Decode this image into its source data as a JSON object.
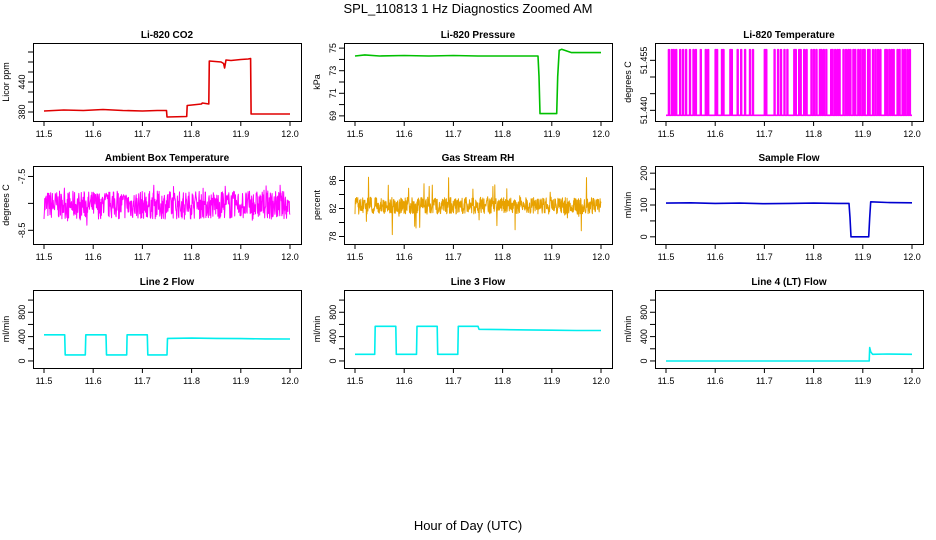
{
  "figure": {
    "title": "SPL_110813  1 Hz Diagnostics Zoomed AM",
    "x_axis_title": "Hour of Day (UTC)"
  },
  "chart_data": [
    {
      "type": "line",
      "title": "Li-820 CO2",
      "ylabel": "Licor ppm",
      "color": "#e00000",
      "xlim": [
        11.5,
        12.0
      ],
      "ylim": [
        370,
        510
      ],
      "xticks": [
        "11.5",
        "11.6",
        "11.7",
        "11.8",
        "11.9",
        "12.0"
      ],
      "yticks": [
        {
          "v": 380,
          "label": "380"
        },
        {
          "v": 400,
          "label": ""
        },
        {
          "v": 420,
          "label": ""
        },
        {
          "v": 440,
          "label": "440"
        },
        {
          "v": 460,
          "label": ""
        },
        {
          "v": 480,
          "label": ""
        },
        {
          "v": 500,
          "label": ""
        }
      ],
      "x": [
        11.5,
        11.54,
        11.58,
        11.62,
        11.66,
        11.7,
        11.73,
        11.749,
        11.75,
        11.79,
        11.791,
        11.82,
        11.822,
        11.835,
        11.836,
        11.86,
        11.865,
        11.867,
        11.87,
        11.88,
        11.9,
        11.915,
        11.92,
        11.921,
        11.96,
        12.0
      ],
      "y": [
        382,
        384,
        383,
        385,
        383,
        382,
        383,
        383,
        370,
        371,
        393,
        396,
        398,
        396,
        482,
        480,
        477,
        468,
        484,
        483,
        485,
        486,
        487,
        376,
        376,
        376
      ]
    },
    {
      "type": "line",
      "title": "Li-820 Pressure",
      "ylabel": "kPa",
      "color": "#00c000",
      "xlim": [
        11.5,
        12.0
      ],
      "ylim": [
        68.9,
        75.1
      ],
      "xticks": [
        "11.5",
        "11.6",
        "11.7",
        "11.8",
        "11.9",
        "12.0"
      ],
      "yticks": [
        {
          "v": 69,
          "label": "69"
        },
        {
          "v": 70,
          "label": ""
        },
        {
          "v": 71,
          "label": "71"
        },
        {
          "v": 72,
          "label": ""
        },
        {
          "v": 73,
          "label": "73"
        },
        {
          "v": 74,
          "label": ""
        },
        {
          "v": 75,
          "label": "75"
        }
      ],
      "x": [
        11.5,
        11.52,
        11.55,
        11.6,
        11.65,
        11.7,
        11.75,
        11.8,
        11.85,
        11.872,
        11.874,
        11.876,
        11.91,
        11.912,
        11.915,
        11.92,
        11.94,
        12.0
      ],
      "y": [
        74.3,
        74.4,
        74.3,
        74.35,
        74.3,
        74.35,
        74.3,
        74.3,
        74.3,
        74.3,
        72.5,
        69.2,
        69.2,
        72.5,
        74.8,
        74.9,
        74.6,
        74.6
      ]
    },
    {
      "type": "line",
      "title": "Li-820 Temperature",
      "ylabel": "degrees C",
      "color": "#ff00ff",
      "xlim": [
        11.5,
        12.0
      ],
      "ylim": [
        51.438,
        51.459
      ],
      "xticks": [
        "11.5",
        "11.6",
        "11.7",
        "11.8",
        "11.9",
        "12.0"
      ],
      "yticks": [
        {
          "v": 51.44,
          "label": "51.440"
        },
        {
          "v": 51.445,
          "label": ""
        },
        {
          "v": 51.45,
          "label": ""
        },
        {
          "v": 51.455,
          "label": "51.455"
        }
      ],
      "low": 51.4385,
      "high": 51.4582,
      "toggle_x": [
        11.505,
        11.511,
        11.515,
        11.52,
        11.528,
        11.534,
        11.54,
        11.548,
        11.555,
        11.56,
        11.57,
        11.58,
        11.585,
        11.6,
        11.603,
        11.613,
        11.616,
        11.63,
        11.633,
        11.645,
        11.652,
        11.66,
        11.67,
        11.676,
        11.7,
        11.703,
        11.72,
        11.727,
        11.733,
        11.74,
        11.746,
        11.76,
        11.763,
        11.77,
        11.773,
        11.78,
        11.785,
        11.795,
        11.8,
        11.805,
        11.812,
        11.815,
        11.82,
        11.825,
        11.835,
        11.838,
        11.843,
        11.848,
        11.852,
        11.86,
        11.865,
        11.87,
        11.874,
        11.88,
        11.884,
        11.89,
        11.895,
        11.9,
        11.903,
        11.91,
        11.913,
        11.92,
        11.925,
        11.93,
        11.935,
        11.945,
        11.948,
        11.953,
        11.958,
        11.962,
        11.97,
        11.974,
        11.98,
        11.985,
        11.99,
        11.995
      ]
    },
    {
      "type": "line",
      "title": "Ambient Box Temperature",
      "ylabel": "degrees C",
      "color": "#ff00ff",
      "xlim": [
        11.5,
        12.0
      ],
      "ylim": [
        -8.68,
        -7.38
      ],
      "xticks": [
        "11.5",
        "11.6",
        "11.7",
        "11.8",
        "11.9",
        "12.0"
      ],
      "yticks": [
        {
          "v": -8.5,
          "label": "-8.5"
        },
        {
          "v": -8.0,
          "label": ""
        },
        {
          "v": -7.5,
          "label": "-7.5"
        }
      ],
      "noise": {
        "center": -8.03,
        "amplitude": 0.26,
        "spike": 0.38,
        "n": 700,
        "seed": 7
      }
    },
    {
      "type": "line",
      "title": "Gas Stream RH",
      "ylabel": "percent",
      "color": "#e8a200",
      "xlim": [
        11.5,
        12.0
      ],
      "ylim": [
        77.5,
        87.5
      ],
      "xticks": [
        "11.5",
        "11.6",
        "11.7",
        "11.8",
        "11.9",
        "12.0"
      ],
      "yticks": [
        {
          "v": 78,
          "label": "78"
        },
        {
          "v": 80,
          "label": ""
        },
        {
          "v": 82,
          "label": "82"
        },
        {
          "v": 84,
          "label": ""
        },
        {
          "v": 86,
          "label": "86"
        }
      ],
      "noise": {
        "center": 82.4,
        "amplitude": 1.2,
        "spike": 4.2,
        "n": 800,
        "seed": 13
      }
    },
    {
      "type": "line",
      "title": "Sample Flow",
      "ylabel": "ml/min",
      "color": "#0000d0",
      "xlim": [
        11.5,
        12.0
      ],
      "ylim": [
        -10,
        210
      ],
      "xticks": [
        "11.5",
        "11.6",
        "11.7",
        "11.8",
        "11.9",
        "12.0"
      ],
      "yticks": [
        {
          "v": 0,
          "label": "0"
        },
        {
          "v": 50,
          "label": ""
        },
        {
          "v": 100,
          "label": "100"
        },
        {
          "v": 150,
          "label": ""
        },
        {
          "v": 200,
          "label": "200"
        }
      ],
      "x": [
        11.5,
        11.55,
        11.6,
        11.65,
        11.7,
        11.75,
        11.8,
        11.85,
        11.872,
        11.874,
        11.876,
        11.912,
        11.914,
        11.916,
        11.95,
        12.0
      ],
      "y": [
        106,
        107,
        105,
        106,
        104,
        105,
        106,
        105,
        105,
        60,
        0,
        0,
        60,
        110,
        108,
        107
      ]
    },
    {
      "type": "line",
      "title": "Line 2 Flow",
      "ylabel": "ml/min",
      "color": "#00eeee",
      "xlim": [
        11.5,
        12.0
      ],
      "ylim": [
        -50,
        1100
      ],
      "xticks": [
        "11.5",
        "11.6",
        "11.7",
        "11.8",
        "11.9",
        "12.0"
      ],
      "yticks": [
        {
          "v": 0,
          "label": "0"
        },
        {
          "v": 200,
          "label": ""
        },
        {
          "v": 400,
          "label": "400"
        },
        {
          "v": 600,
          "label": ""
        },
        {
          "v": 800,
          "label": "800"
        },
        {
          "v": 1000,
          "label": ""
        }
      ],
      "x": [
        11.5,
        11.542,
        11.543,
        11.584,
        11.585,
        11.626,
        11.627,
        11.668,
        11.669,
        11.71,
        11.711,
        11.75,
        11.751,
        11.8,
        11.85,
        11.9,
        11.95,
        12.0
      ],
      "y": [
        430,
        430,
        100,
        100,
        430,
        430,
        100,
        100,
        430,
        430,
        100,
        100,
        370,
        375,
        370,
        368,
        362,
        360
      ]
    },
    {
      "type": "line",
      "title": "Line 3 Flow",
      "ylabel": "ml/min",
      "color": "#00eeee",
      "xlim": [
        11.5,
        12.0
      ],
      "ylim": [
        -50,
        1100
      ],
      "xticks": [
        "11.5",
        "11.6",
        "11.7",
        "11.8",
        "11.9",
        "12.0"
      ],
      "yticks": [
        {
          "v": 0,
          "label": "0"
        },
        {
          "v": 200,
          "label": ""
        },
        {
          "v": 400,
          "label": "400"
        },
        {
          "v": 600,
          "label": ""
        },
        {
          "v": 800,
          "label": "800"
        },
        {
          "v": 1000,
          "label": ""
        }
      ],
      "x": [
        11.5,
        11.54,
        11.541,
        11.583,
        11.584,
        11.625,
        11.626,
        11.667,
        11.668,
        11.709,
        11.71,
        11.75,
        11.752,
        11.8,
        11.85,
        11.9,
        11.95,
        12.0
      ],
      "y": [
        110,
        110,
        570,
        570,
        110,
        110,
        570,
        570,
        110,
        110,
        570,
        570,
        520,
        515,
        510,
        505,
        500,
        500
      ]
    },
    {
      "type": "line",
      "title": "Line 4 (LT) Flow",
      "ylabel": "ml/min",
      "color": "#00eeee",
      "xlim": [
        11.5,
        12.0
      ],
      "ylim": [
        -50,
        1100
      ],
      "xticks": [
        "11.5",
        "11.6",
        "11.7",
        "11.8",
        "11.9",
        "12.0"
      ],
      "yticks": [
        {
          "v": 0,
          "label": "0"
        },
        {
          "v": 200,
          "label": ""
        },
        {
          "v": 400,
          "label": "400"
        },
        {
          "v": 600,
          "label": ""
        },
        {
          "v": 800,
          "label": "800"
        },
        {
          "v": 1000,
          "label": ""
        }
      ],
      "x": [
        11.5,
        11.6,
        11.7,
        11.8,
        11.9,
        11.913,
        11.914,
        11.916,
        11.92,
        11.95,
        12.0
      ],
      "y": [
        0,
        0,
        0,
        0,
        0,
        0,
        220,
        150,
        110,
        115,
        110
      ]
    }
  ]
}
